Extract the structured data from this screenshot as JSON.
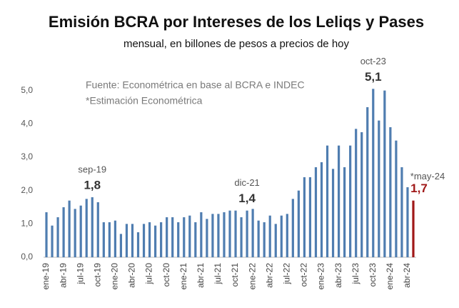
{
  "chart_data": {
    "type": "bar",
    "title": "Emisión BCRA por Intereses de los Leliqs y Pases",
    "subtitle": "mensual, en billones de pesos a precios de hoy",
    "notes": [
      "Fuente: Econométrica en base al BCRA e INDEC",
      "*Estimación Econométrica"
    ],
    "categories": [
      "ene-19",
      null,
      null,
      "abr-19",
      null,
      null,
      "jul-19",
      null,
      null,
      "oct-19",
      null,
      null,
      "ene-20",
      null,
      null,
      "abr-20",
      null,
      null,
      "jul-20",
      null,
      null,
      "oct-20",
      null,
      null,
      "ene-21",
      null,
      null,
      "abr-21",
      null,
      null,
      "jul-21",
      null,
      null,
      "oct-21",
      null,
      null,
      "ene-22",
      null,
      null,
      "abr-22",
      null,
      null,
      "jul-22",
      null,
      null,
      "oct-22",
      null,
      null,
      "ene-23",
      null,
      null,
      "abr-23",
      null,
      null,
      "jul-23",
      null,
      null,
      "oct-23",
      null,
      null,
      "ene-24",
      null,
      null,
      "abr-24",
      null
    ],
    "values": [
      1.35,
      0.95,
      1.2,
      1.5,
      1.7,
      1.45,
      1.55,
      1.75,
      1.8,
      1.65,
      1.05,
      1.05,
      1.1,
      0.7,
      1.0,
      1.0,
      0.75,
      1.0,
      1.05,
      0.95,
      1.05,
      1.2,
      1.2,
      1.05,
      1.2,
      1.25,
      1.05,
      1.35,
      1.15,
      1.3,
      1.3,
      1.35,
      1.4,
      1.4,
      1.2,
      1.4,
      1.45,
      1.1,
      1.05,
      1.25,
      1.0,
      1.25,
      1.3,
      1.75,
      2.0,
      2.4,
      2.4,
      2.7,
      2.85,
      3.35,
      2.65,
      3.35,
      2.7,
      3.35,
      3.85,
      3.75,
      4.5,
      5.05,
      4.1,
      5.0,
      3.9,
      3.5,
      2.7,
      2.1,
      1.7
    ],
    "value_labels": [
      null,
      null,
      null,
      null,
      null,
      null,
      null,
      null,
      "1,8",
      null,
      null,
      null,
      null,
      null,
      null,
      null,
      null,
      null,
      null,
      null,
      null,
      null,
      null,
      null,
      null,
      null,
      null,
      null,
      null,
      null,
      null,
      null,
      null,
      null,
      null,
      "1,4",
      null,
      null,
      null,
      null,
      null,
      null,
      null,
      null,
      null,
      null,
      null,
      null,
      null,
      null,
      null,
      null,
      null,
      null,
      null,
      null,
      null,
      "5,1",
      null,
      null,
      null,
      null,
      null,
      null,
      "1,7"
    ],
    "annotations": [
      null,
      null,
      null,
      null,
      null,
      null,
      null,
      null,
      "sep-19",
      null,
      null,
      null,
      null,
      null,
      null,
      null,
      null,
      null,
      null,
      null,
      null,
      null,
      null,
      null,
      null,
      null,
      null,
      null,
      null,
      null,
      null,
      null,
      null,
      null,
      null,
      "dic-21",
      null,
      null,
      null,
      null,
      null,
      null,
      null,
      null,
      null,
      null,
      null,
      null,
      null,
      null,
      null,
      null,
      null,
      null,
      null,
      null,
      null,
      "oct-23",
      null,
      null,
      null,
      null,
      null,
      null,
      "*may-24"
    ],
    "colors": [
      "#4f7db0",
      "#4f7db0",
      "#4f7db0",
      "#4f7db0",
      "#4f7db0",
      "#4f7db0",
      "#4f7db0",
      "#4f7db0",
      "#4f7db0",
      "#4f7db0",
      "#4f7db0",
      "#4f7db0",
      "#4f7db0",
      "#4f7db0",
      "#4f7db0",
      "#4f7db0",
      "#4f7db0",
      "#4f7db0",
      "#4f7db0",
      "#4f7db0",
      "#4f7db0",
      "#4f7db0",
      "#4f7db0",
      "#4f7db0",
      "#4f7db0",
      "#4f7db0",
      "#4f7db0",
      "#4f7db0",
      "#4f7db0",
      "#4f7db0",
      "#4f7db0",
      "#4f7db0",
      "#4f7db0",
      "#4f7db0",
      "#4f7db0",
      "#4f7db0",
      "#4f7db0",
      "#4f7db0",
      "#4f7db0",
      "#4f7db0",
      "#4f7db0",
      "#4f7db0",
      "#4f7db0",
      "#4f7db0",
      "#4f7db0",
      "#4f7db0",
      "#4f7db0",
      "#4f7db0",
      "#4f7db0",
      "#4f7db0",
      "#4f7db0",
      "#4f7db0",
      "#4f7db0",
      "#4f7db0",
      "#4f7db0",
      "#4f7db0",
      "#4f7db0",
      "#4f7db0",
      "#4f7db0",
      "#4f7db0",
      "#4f7db0",
      "#4f7db0",
      "#4f7db0",
      "#4f7db0",
      "#a01818"
    ],
    "ylim": [
      0,
      5.4
    ],
    "yticks": [
      {
        "value": 0,
        "label": "0,0"
      },
      {
        "value": 1,
        "label": "1,0"
      },
      {
        "value": 2,
        "label": "2,0"
      },
      {
        "value": 3,
        "label": "3,0"
      },
      {
        "value": 4,
        "label": "4,0"
      },
      {
        "value": 5,
        "label": "5,0"
      }
    ],
    "grid": false
  }
}
